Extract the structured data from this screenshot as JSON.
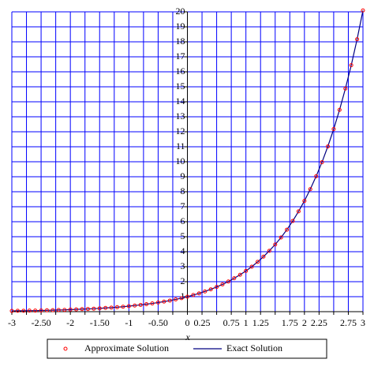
{
  "chart_data": {
    "type": "line",
    "x_label": "x",
    "x": [
      -3.0,
      -2.9,
      -2.8,
      -2.7,
      -2.6,
      -2.5,
      -2.4,
      -2.3,
      -2.2,
      -2.1,
      -2.0,
      -1.9,
      -1.8,
      -1.7,
      -1.6,
      -1.5,
      -1.4,
      -1.3,
      -1.2,
      -1.1,
      -1.0,
      -0.9,
      -0.8,
      -0.7,
      -0.6,
      -0.5,
      -0.4,
      -0.3,
      -0.2,
      -0.1,
      0.0,
      0.1,
      0.2,
      0.3,
      0.4,
      0.5,
      0.6,
      0.7,
      0.8,
      0.9,
      1.0,
      1.1,
      1.2,
      1.3,
      1.4,
      1.5,
      1.6,
      1.7,
      1.8,
      1.9,
      2.0,
      2.1,
      2.2,
      2.3,
      2.4,
      2.5,
      2.6,
      2.7,
      2.8,
      2.9,
      3.0
    ],
    "series": [
      {
        "name": "Approximate Solution",
        "color": "#ff0000",
        "style": "points",
        "values": [
          0.05,
          0.06,
          0.06,
          0.07,
          0.07,
          0.08,
          0.09,
          0.1,
          0.11,
          0.12,
          0.14,
          0.15,
          0.17,
          0.18,
          0.2,
          0.22,
          0.25,
          0.27,
          0.3,
          0.33,
          0.37,
          0.41,
          0.45,
          0.5,
          0.55,
          0.61,
          0.67,
          0.74,
          0.82,
          0.9,
          1.0,
          1.11,
          1.22,
          1.35,
          1.49,
          1.65,
          1.82,
          2.01,
          2.23,
          2.46,
          2.72,
          3.0,
          3.32,
          3.67,
          4.06,
          4.48,
          4.95,
          5.47,
          6.05,
          6.69,
          7.39,
          8.17,
          9.03,
          9.97,
          11.02,
          12.18,
          13.46,
          14.88,
          16.44,
          18.17,
          20.09
        ]
      },
      {
        "name": "Exact Solution",
        "color": "#000080",
        "style": "line",
        "values": [
          0.05,
          0.06,
          0.06,
          0.07,
          0.07,
          0.08,
          0.09,
          0.1,
          0.11,
          0.12,
          0.14,
          0.15,
          0.17,
          0.18,
          0.2,
          0.22,
          0.25,
          0.27,
          0.3,
          0.33,
          0.37,
          0.41,
          0.45,
          0.5,
          0.55,
          0.61,
          0.67,
          0.74,
          0.82,
          0.9,
          1.0,
          1.11,
          1.22,
          1.35,
          1.49,
          1.65,
          1.82,
          2.01,
          2.23,
          2.46,
          2.72,
          3.0,
          3.32,
          3.67,
          4.06,
          4.48,
          4.95,
          5.47,
          6.05,
          6.69,
          7.39,
          8.17,
          9.03,
          9.97,
          11.02,
          12.18,
          13.46,
          14.88,
          16.44,
          18.17,
          20.09
        ]
      }
    ],
    "xlim": [
      -3,
      3
    ],
    "ylim": [
      0,
      20
    ],
    "xticks": [
      -3,
      {
        "value": -2.75,
        "label": null
      },
      {
        "value": -2.5,
        "label": "-2.50"
      },
      {
        "value": -2.25,
        "label": null
      },
      -2,
      {
        "value": -1.75,
        "label": null
      },
      {
        "value": -1.5,
        "label": "-1.50"
      },
      {
        "value": -1.25,
        "label": null
      },
      -1,
      {
        "value": -0.75,
        "label": null
      },
      {
        "value": -0.5,
        "label": "-0.50"
      },
      {
        "value": -0.25,
        "label": null
      },
      0,
      0.25,
      {
        "value": 0.5,
        "label": null
      },
      0.75,
      1,
      1.25,
      {
        "value": 1.5,
        "label": null
      },
      1.75,
      2,
      2.25,
      {
        "value": 2.5,
        "label": null
      },
      2.75,
      3
    ],
    "yticks": [
      1,
      2,
      3,
      4,
      5,
      6,
      7,
      8,
      9,
      10,
      11,
      12,
      13,
      14,
      15,
      16,
      17,
      18,
      19,
      20
    ],
    "grid": true,
    "grid_color": "#0000ff",
    "legend": "bottom"
  }
}
